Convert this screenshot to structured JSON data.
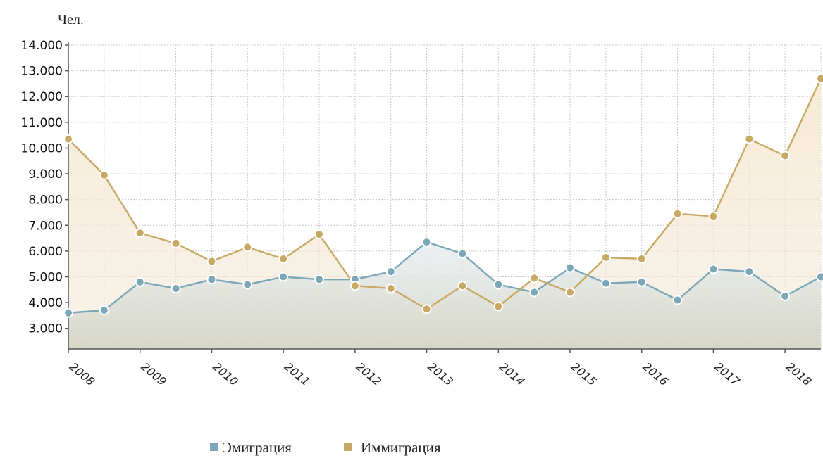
{
  "chart_data": {
    "type": "line",
    "ylabel": "Чел.",
    "ylim": [
      2200,
      14000
    ],
    "yticks": [
      3000,
      4000,
      5000,
      6000,
      7000,
      8000,
      9000,
      10000,
      11000,
      12000,
      13000,
      14000
    ],
    "ytick_labels": [
      "3.000",
      "4.000",
      "5.000",
      "6.000",
      "7.000",
      "8.000",
      "9.000",
      "10.000",
      "11.000",
      "12.000",
      "13.000",
      "14.000"
    ],
    "x": [
      2008,
      2008.5,
      2009,
      2009.5,
      2010,
      2010.5,
      2011,
      2011.5,
      2012,
      2012.5,
      2013,
      2013.5,
      2014,
      2014.5,
      2015,
      2015.5,
      2016,
      2016.5,
      2017,
      2017.5,
      2018,
      2018.5
    ],
    "xlim": [
      2008,
      2018.5
    ],
    "xticks": [
      2008,
      2009,
      2010,
      2011,
      2012,
      2013,
      2014,
      2015,
      2016,
      2017,
      2018
    ],
    "xtick_labels": [
      "2008",
      "2009",
      "2010",
      "2011",
      "2012",
      "2013",
      "2014",
      "2015",
      "2016",
      "2017",
      "2018"
    ],
    "grid": true,
    "legend_position": "bottom-center",
    "series": [
      {
        "name": "Эмиграция",
        "color": "#7ba7b8",
        "values": [
          3600,
          3700,
          4800,
          4550,
          4900,
          4700,
          5000,
          4900,
          4900,
          5200,
          6350,
          5900,
          4700,
          4400,
          5350,
          4750,
          4800,
          4100,
          5300,
          5200,
          4250,
          5000
        ]
      },
      {
        "name": "Иммиграция",
        "color": "#c8a964",
        "values": [
          10350,
          8950,
          6700,
          6300,
          5600,
          6150,
          5700,
          6650,
          4650,
          4550,
          3750,
          4650,
          3850,
          4950,
          4400,
          5750,
          5700,
          7450,
          7350,
          10350,
          9700,
          12700
        ]
      }
    ]
  }
}
